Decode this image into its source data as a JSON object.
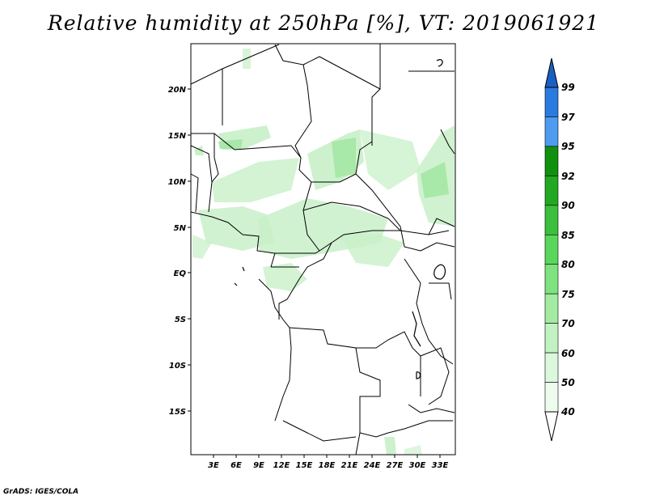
{
  "title": "Relative humidity at 250hPa [%], VT: 2019061921",
  "credit": "GrADS: IGES/COLA",
  "map": {
    "lat_labels": [
      "20N",
      "15N",
      "10N",
      "5N",
      "EQ",
      "5S",
      "10S",
      "15S"
    ],
    "lon_labels": [
      "3E",
      "6E",
      "9E",
      "12E",
      "15E",
      "18E",
      "21E",
      "24E",
      "27E",
      "30E",
      "33E"
    ]
  },
  "colorbar": {
    "labels": [
      "99",
      "97",
      "95",
      "92",
      "90",
      "85",
      "80",
      "75",
      "70",
      "60",
      "50",
      "40"
    ],
    "colors": [
      "#1a5fc4",
      "#2a7ae0",
      "#4d9cf0",
      "#10900f",
      "#22a822",
      "#3cbf3c",
      "#5ad75a",
      "#7ee27e",
      "#a2eca2",
      "#c2f2c2",
      "#dcf8dc",
      "#eefcee"
    ],
    "under_color": "#ffffff"
  }
}
